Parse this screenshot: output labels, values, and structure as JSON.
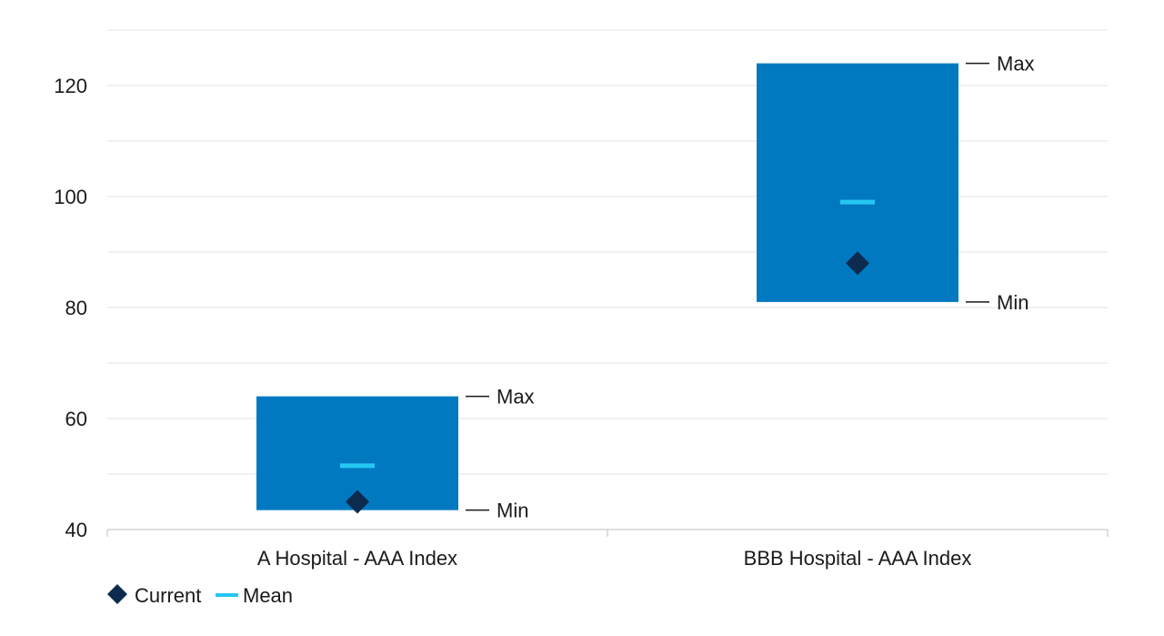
{
  "chart_data": {
    "type": "floating-range",
    "categories": [
      "A Hospital - AAA Index",
      "BBB Hospital - AAA Index"
    ],
    "min": [
      43.5,
      81
    ],
    "max": [
      64,
      124
    ],
    "series": [
      {
        "name": "Current",
        "values": [
          45,
          88
        ]
      },
      {
        "name": "Mean",
        "values": [
          51.5,
          99
        ]
      }
    ],
    "range_labels": {
      "max": "Max",
      "min": "Min"
    },
    "ylim": [
      40,
      130
    ],
    "yticks": [
      40,
      60,
      80,
      100,
      120
    ],
    "grid": true,
    "legend": "bottom-left",
    "xlabel": "",
    "ylabel": "",
    "title": ""
  },
  "colors": {
    "range_bar": "#0079c1",
    "current_marker": "#0d2b4e",
    "mean_marker": "#25c7f3",
    "grid": "#e3e3e3",
    "axis": "#bfbfbf",
    "annotation_line": "#1a1a1a"
  },
  "icons": {
    "current": "diamond-icon",
    "mean": "dash-icon"
  }
}
